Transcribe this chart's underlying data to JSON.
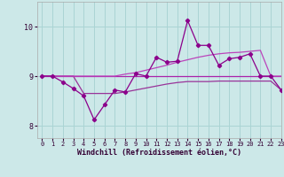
{
  "x": [
    0,
    1,
    2,
    3,
    4,
    5,
    6,
    7,
    8,
    9,
    10,
    11,
    12,
    13,
    14,
    15,
    16,
    17,
    18,
    19,
    20,
    21,
    22,
    23
  ],
  "line_scatter": [
    9.0,
    9.0,
    8.88,
    8.75,
    8.6,
    8.12,
    8.42,
    8.72,
    8.68,
    9.05,
    9.0,
    9.38,
    9.28,
    9.3,
    10.12,
    9.62,
    9.62,
    9.22,
    9.35,
    9.38,
    9.45,
    9.0,
    9.0,
    8.72
  ],
  "line_flat": [
    9.0,
    9.0,
    9.0,
    9.0,
    9.0,
    9.0,
    9.0,
    9.0,
    9.0,
    9.0,
    9.0,
    9.0,
    9.0,
    9.0,
    9.0,
    9.0,
    9.0,
    9.0,
    9.0,
    9.0,
    9.0,
    9.0,
    9.0,
    9.0
  ],
  "line_upper": [
    9.0,
    9.0,
    9.0,
    9.0,
    9.0,
    9.0,
    9.0,
    9.0,
    9.04,
    9.07,
    9.12,
    9.17,
    9.22,
    9.28,
    9.33,
    9.38,
    9.42,
    9.45,
    9.47,
    9.48,
    9.5,
    9.52,
    9.0,
    9.0
  ],
  "line_lower": [
    9.0,
    9.0,
    9.0,
    9.0,
    8.65,
    8.65,
    8.65,
    8.65,
    8.68,
    8.72,
    8.76,
    8.8,
    8.84,
    8.87,
    8.89,
    8.89,
    8.89,
    8.9,
    8.9,
    8.9,
    8.9,
    8.9,
    8.9,
    8.72
  ],
  "color_scatter": "#8b008b",
  "color_flat": "#aa22aa",
  "color_upper": "#bb44bb",
  "color_lower": "#993399",
  "bg_color": "#cce8e8",
  "grid_color": "#aad4d4",
  "xlabel": "Windchill (Refroidissement éolien,°C)",
  "ylim": [
    7.75,
    10.5
  ],
  "xlim": [
    -0.5,
    23
  ],
  "yticks": [
    8,
    9,
    10
  ],
  "xticks": [
    0,
    1,
    2,
    3,
    4,
    5,
    6,
    7,
    8,
    9,
    10,
    11,
    12,
    13,
    14,
    15,
    16,
    17,
    18,
    19,
    20,
    21,
    22,
    23
  ]
}
